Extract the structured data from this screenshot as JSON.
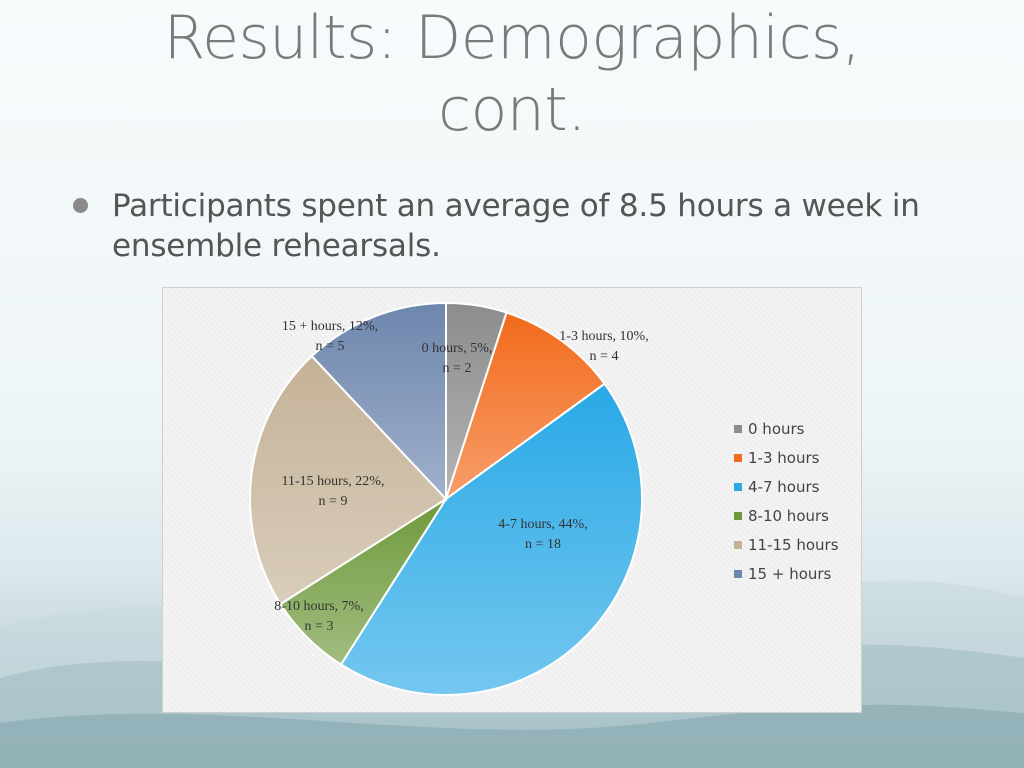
{
  "slide": {
    "title_line1": "Results: Demographics,",
    "title_line2": "cont.",
    "bullet": "Participants spent an average of 8.5 hours a week in ensemble rehearsals."
  },
  "chart_data": {
    "type": "pie",
    "title": "",
    "legend_position": "right",
    "slices": [
      {
        "name": "0 hours",
        "percent": 5,
        "n": 2,
        "label_line1": "0 hours, 5%,",
        "label_line2": "n = 2",
        "color": "#8c8c8c"
      },
      {
        "name": "1-3 hours",
        "percent": 10,
        "n": 4,
        "label_line1": "1-3 hours, 10%,",
        "label_line2": "n = 4",
        "color": "#f26a1b"
      },
      {
        "name": "4-7 hours",
        "percent": 44,
        "n": 18,
        "label_line1": "4-7 hours, 44%,",
        "label_line2": "n = 18",
        "color": "#29a9e6"
      },
      {
        "name": "8-10 hours",
        "percent": 7,
        "n": 3,
        "label_line1": "8-10 hours, 7%,",
        "label_line2": "n = 3",
        "color": "#6f9a3c"
      },
      {
        "name": "11-15 hours",
        "percent": 22,
        "n": 9,
        "label_line1": "11-15 hours, 22%,",
        "label_line2": "n = 9",
        "color": "#c4b297"
      },
      {
        "name": "15 + hours",
        "percent": 12,
        "n": 5,
        "label_line1": "15 + hours, 12%,",
        "label_line2": "n = 5",
        "color": "#6d86ad"
      }
    ],
    "legend": [
      "0 hours",
      "1-3 hours",
      "4-7 hours",
      "8-10 hours",
      "11-15 hours",
      "15 + hours"
    ]
  }
}
